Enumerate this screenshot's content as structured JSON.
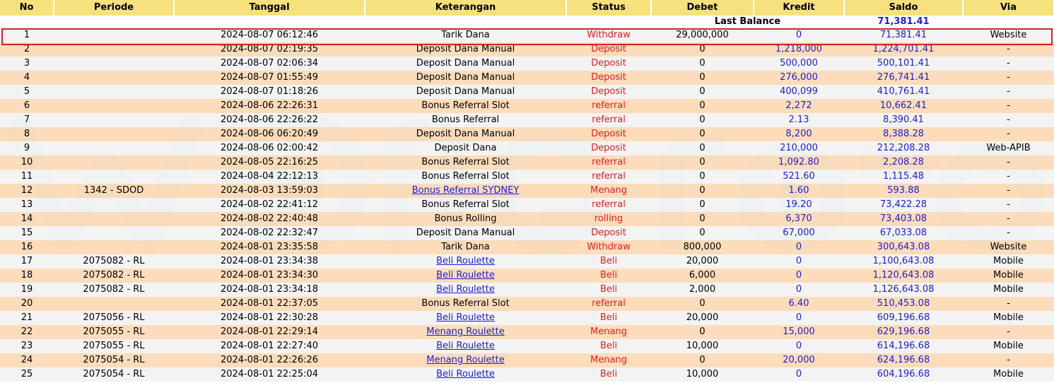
{
  "headers": [
    "No",
    "Periode",
    "Tanggal",
    "Keterangan",
    "Status",
    "Debet",
    "Kredit",
    "Saldo",
    "Via"
  ],
  "last_balance": {
    "label": "Last Balance",
    "value": "71,381.41"
  },
  "rows": [
    {
      "no": "1",
      "periode": "",
      "tanggal": "2024-08-07 06:12:46",
      "keterangan": "Tarik Dana",
      "link": false,
      "status": "Withdraw",
      "debet": "29,000,000",
      "kredit": "0",
      "saldo": "71,381.41",
      "via": "Website"
    },
    {
      "no": "2",
      "periode": "",
      "tanggal": "2024-08-07 02:19:35",
      "keterangan": "Deposit Dana Manual",
      "link": false,
      "status": "Deposit",
      "debet": "0",
      "kredit": "1,218,000",
      "saldo": "1,224,701.41",
      "via": "-"
    },
    {
      "no": "3",
      "periode": "",
      "tanggal": "2024-08-07 02:06:34",
      "keterangan": "Deposit Dana Manual",
      "link": false,
      "status": "Deposit",
      "debet": "0",
      "kredit": "500,000",
      "saldo": "500,101.41",
      "via": "-"
    },
    {
      "no": "4",
      "periode": "",
      "tanggal": "2024-08-07 01:55:49",
      "keterangan": "Deposit Dana Manual",
      "link": false,
      "status": "Deposit",
      "debet": "0",
      "kredit": "276,000",
      "saldo": "276,741.41",
      "via": "-"
    },
    {
      "no": "5",
      "periode": "",
      "tanggal": "2024-08-07 01:18:26",
      "keterangan": "Deposit Dana Manual",
      "link": false,
      "status": "Deposit",
      "debet": "0",
      "kredit": "400,099",
      "saldo": "410,761.41",
      "via": "-"
    },
    {
      "no": "6",
      "periode": "",
      "tanggal": "2024-08-06 22:26:31",
      "keterangan": "Bonus Referral Slot",
      "link": false,
      "status": "referral",
      "debet": "0",
      "kredit": "2,272",
      "saldo": "10,662.41",
      "via": "-"
    },
    {
      "no": "7",
      "periode": "",
      "tanggal": "2024-08-06 22:26:22",
      "keterangan": "Bonus Referral",
      "link": false,
      "status": "referral",
      "debet": "0",
      "kredit": "2.13",
      "saldo": "8,390.41",
      "via": "-"
    },
    {
      "no": "8",
      "periode": "",
      "tanggal": "2024-08-06 06:20:49",
      "keterangan": "Deposit Dana Manual",
      "link": false,
      "status": "Deposit",
      "debet": "0",
      "kredit": "8,200",
      "saldo": "8,388.28",
      "via": "-"
    },
    {
      "no": "9",
      "periode": "",
      "tanggal": "2024-08-06 02:00:42",
      "keterangan": "Deposit Dana",
      "link": false,
      "status": "Deposit",
      "debet": "0",
      "kredit": "210,000",
      "saldo": "212,208.28",
      "via": "Web-APIB"
    },
    {
      "no": "10",
      "periode": "",
      "tanggal": "2024-08-05 22:16:25",
      "keterangan": "Bonus Referral Slot",
      "link": false,
      "status": "referral",
      "debet": "0",
      "kredit": "1,092.80",
      "saldo": "2,208.28",
      "via": "-"
    },
    {
      "no": "11",
      "periode": "",
      "tanggal": "2024-08-04 22:12:13",
      "keterangan": "Bonus Referral Slot",
      "link": false,
      "status": "referral",
      "debet": "0",
      "kredit": "521.60",
      "saldo": "1,115.48",
      "via": "-"
    },
    {
      "no": "12",
      "periode": "1342 - SDOD",
      "tanggal": "2024-08-03 13:59:03",
      "keterangan": "Bonus Referral SYDNEY",
      "link": true,
      "status": "Menang",
      "debet": "0",
      "kredit": "1.60",
      "saldo": "593.88",
      "via": "-"
    },
    {
      "no": "13",
      "periode": "",
      "tanggal": "2024-08-02 22:41:12",
      "keterangan": "Bonus Referral Slot",
      "link": false,
      "status": "referral",
      "debet": "0",
      "kredit": "19.20",
      "saldo": "73,422.28",
      "via": "-"
    },
    {
      "no": "14",
      "periode": "",
      "tanggal": "2024-08-02 22:40:48",
      "keterangan": "Bonus Rolling",
      "link": false,
      "status": "rolling",
      "debet": "0",
      "kredit": "6,370",
      "saldo": "73,403.08",
      "via": "-"
    },
    {
      "no": "15",
      "periode": "",
      "tanggal": "2024-08-02 22:32:47",
      "keterangan": "Deposit Dana Manual",
      "link": false,
      "status": "Deposit",
      "debet": "0",
      "kredit": "67,000",
      "saldo": "67,033.08",
      "via": "-"
    },
    {
      "no": "16",
      "periode": "",
      "tanggal": "2024-08-01 23:35:58",
      "keterangan": "Tarik Dana",
      "link": false,
      "status": "Withdraw",
      "debet": "800,000",
      "kredit": "0",
      "saldo": "300,643.08",
      "via": "Website"
    },
    {
      "no": "17",
      "periode": "2075082 - RL",
      "tanggal": "2024-08-01 23:34:38",
      "keterangan": "Beli Roulette",
      "link": true,
      "status": "Beli",
      "debet": "20,000",
      "kredit": "0",
      "saldo": "1,100,643.08",
      "via": "Mobile"
    },
    {
      "no": "18",
      "periode": "2075082 - RL",
      "tanggal": "2024-08-01 23:34:30",
      "keterangan": "Beli Roulette",
      "link": true,
      "status": "Beli",
      "debet": "6,000",
      "kredit": "0",
      "saldo": "1,120,643.08",
      "via": "Mobile"
    },
    {
      "no": "19",
      "periode": "2075082 - RL",
      "tanggal": "2024-08-01 23:34:18",
      "keterangan": "Beli Roulette",
      "link": true,
      "status": "Beli",
      "debet": "2,000",
      "kredit": "0",
      "saldo": "1,126,643.08",
      "via": "Mobile"
    },
    {
      "no": "20",
      "periode": "",
      "tanggal": "2024-08-01 22:37:05",
      "keterangan": "Bonus Referral Slot",
      "link": false,
      "status": "referral",
      "debet": "0",
      "kredit": "6.40",
      "saldo": "510,453.08",
      "via": "-"
    },
    {
      "no": "21",
      "periode": "2075056 - RL",
      "tanggal": "2024-08-01 22:30:28",
      "keterangan": "Beli Roulette",
      "link": true,
      "status": "Beli",
      "debet": "20,000",
      "kredit": "0",
      "saldo": "609,196.68",
      "via": "Mobile"
    },
    {
      "no": "22",
      "periode": "2075055 - RL",
      "tanggal": "2024-08-01 22:29:14",
      "keterangan": "Menang Roulette",
      "link": true,
      "status": "Menang",
      "debet": "0",
      "kredit": "15,000",
      "saldo": "629,196.68",
      "via": "-"
    },
    {
      "no": "23",
      "periode": "2075055 - RL",
      "tanggal": "2024-08-01 22:27:40",
      "keterangan": "Beli Roulette",
      "link": true,
      "status": "Beli",
      "debet": "10,000",
      "kredit": "0",
      "saldo": "614,196.68",
      "via": "Mobile"
    },
    {
      "no": "24",
      "periode": "2075054 - RL",
      "tanggal": "2024-08-01 22:26:26",
      "keterangan": "Menang Roulette",
      "link": true,
      "status": "Menang",
      "debet": "0",
      "kredit": "20,000",
      "saldo": "624,196.68",
      "via": "-"
    },
    {
      "no": "25",
      "periode": "2075054 - RL",
      "tanggal": "2024-08-01 22:25:04",
      "keterangan": "Beli Roulette",
      "link": true,
      "status": "Beli",
      "debet": "10,000",
      "kredit": "0",
      "saldo": "604,196.68",
      "via": "Mobile"
    }
  ],
  "colors": {
    "header_bg": "#f7e17c",
    "row_odd": "#f2f2f2",
    "row_even": "#fcd8b4",
    "status": "#e01e1e",
    "amount": "#1d1dd6",
    "highlight": "#d2222a"
  },
  "watermark": {
    "icon": "watermark-logo"
  }
}
